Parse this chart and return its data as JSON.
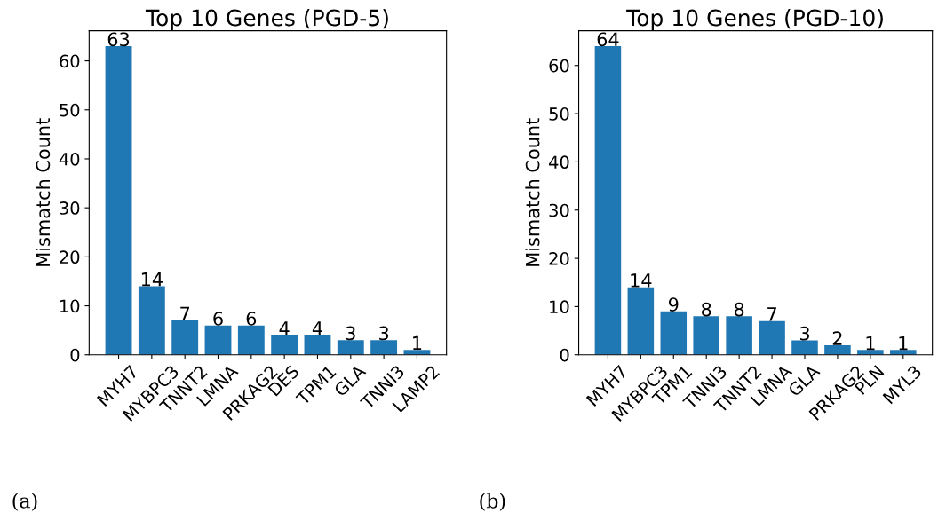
{
  "chart_data": [
    {
      "type": "bar",
      "title": "Top 10 Genes (PGD-5)",
      "ylabel": "Mismatch Count",
      "categories": [
        "MYH7",
        "MYBPC3",
        "TNNT2",
        "LMNA",
        "PRKAG2",
        "DES",
        "TPM1",
        "GLA",
        "TNNI3",
        "LAMP2"
      ],
      "values": [
        63,
        14,
        7,
        6,
        6,
        4,
        4,
        3,
        3,
        1
      ],
      "color": "#1f77b4",
      "ylim": [
        0,
        66.15
      ],
      "yticks": [
        0,
        10,
        20,
        30,
        40,
        50,
        60
      ],
      "data_labels": true,
      "annotations": [
        "(a)"
      ]
    },
    {
      "type": "bar",
      "title": "Top 10 Genes (PGD-10)",
      "ylabel": "Mismatch Count",
      "categories": [
        "MYH7",
        "MYBPC3",
        "TPM1",
        "TNNI3",
        "TNNT2",
        "LMNA",
        "GLA",
        "PRKAG2",
        "PLN",
        "MYL3"
      ],
      "values": [
        64,
        14,
        9,
        8,
        8,
        7,
        3,
        2,
        1,
        1
      ],
      "color": "#1f77b4",
      "ylim": [
        0,
        67.2
      ],
      "yticks": [
        0,
        10,
        20,
        30,
        40,
        50,
        60
      ],
      "data_labels": true,
      "annotations": [
        "(b)"
      ]
    }
  ]
}
